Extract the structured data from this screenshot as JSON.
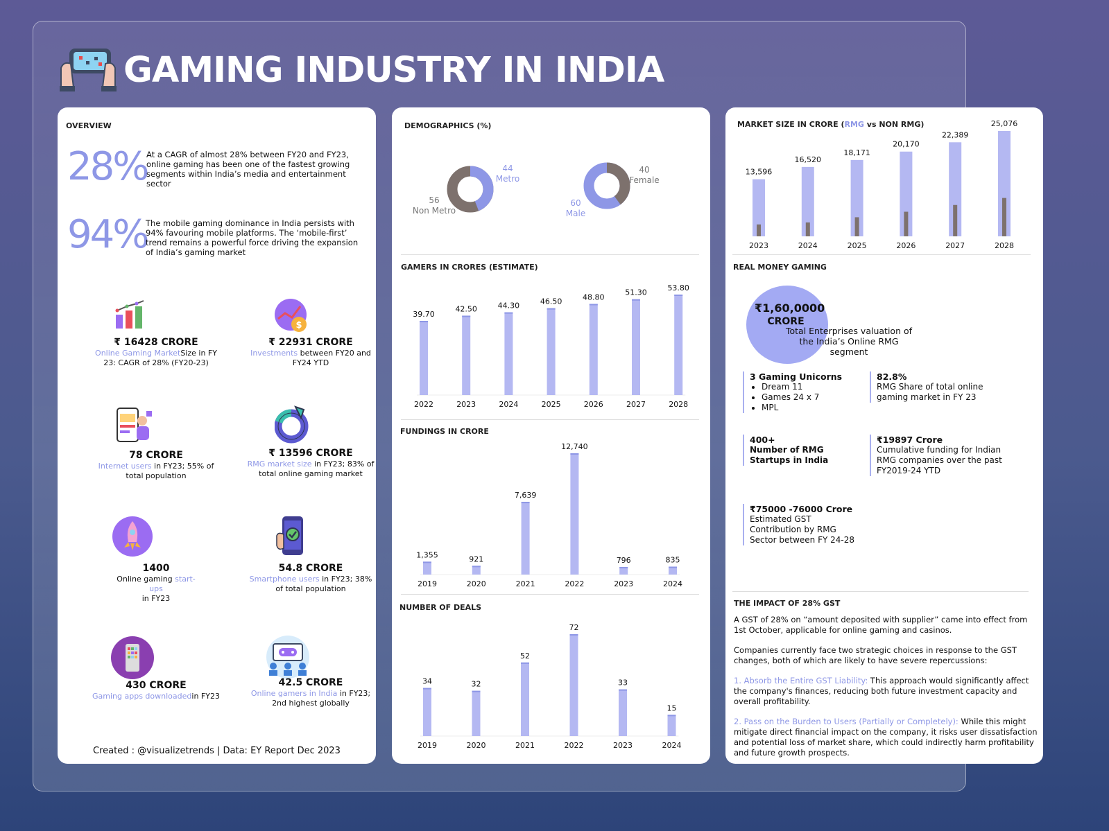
{
  "title": "GAMING INDUSTRY IN INDIA",
  "colors": {
    "accent": "#8e97e6",
    "bar": "#b4b8f2",
    "bar_dark": "#7d716d"
  },
  "overview": {
    "heading": "OVERVIEW",
    "p1": {
      "big": "28%",
      "text": "At a CAGR of almost 28% between FY20 and FY23, online gaming has been one of the fastest growing segments within India’s media and entertainment sector"
    },
    "p2": {
      "big": "94%",
      "text": "The mobile gaming dominance in India persists with 94% favouring mobile platforms. The ‘mobile-first’ trend remains a powerful force driving the expansion of India’s gaming market"
    },
    "stats": [
      {
        "value": "₹ 16428 CRORE",
        "hl": "Online Gaming Market",
        "rest": "Size in FY 23: CAGR of 28% (FY20-23)",
        "icon": "bar-chart-icon"
      },
      {
        "value": "₹ 22931 CRORE",
        "hl": "Investments",
        "rest": " between FY20 and FY24 YTD",
        "icon": "investment-icon"
      },
      {
        "value": "78 CRORE",
        "hl": "Internet users",
        "rest": " in FY23; 55% of total population",
        "icon": "internet-user-icon"
      },
      {
        "value": "₹ 13596 CRORE",
        "hl": "RMG market size",
        "rest": " in FY23; 83% of total online gaming market",
        "icon": "donut-icon"
      },
      {
        "value": "1400",
        "pre": "Online gaming ",
        "hl": "start-ups",
        "rest": "in FY23",
        "icon": "rocket-icon"
      },
      {
        "value": "54.8 CRORE",
        "hl": "Smartphone users",
        "rest": " in FY23; 38% of total population",
        "icon": "smartphone-icon"
      },
      {
        "value": "430 CRORE",
        "hl": "Gaming apps downloaded",
        "rest": "in FY23",
        "icon": "apps-icon"
      },
      {
        "value": "42.5 CRORE",
        "hl": "Online gamers in India",
        "rest": " in FY23; 2nd highest globally",
        "icon": "gamers-icon"
      }
    ],
    "credit": "Created : @visualizetrends | Data: EY Report Dec 2023"
  },
  "chart_data": [
    {
      "type": "pie",
      "title": "DEMOGRAPHICS (%)",
      "categories": [
        "Metro",
        "Non Metro"
      ],
      "values": [
        44,
        56
      ]
    },
    {
      "type": "pie",
      "categories": [
        "Female",
        "Male"
      ],
      "values": [
        40,
        60
      ]
    },
    {
      "type": "bar",
      "title": "GAMERS IN CRORES (ESTIMATE)",
      "categories": [
        "2022",
        "2023",
        "2024",
        "2025",
        "2026",
        "2027",
        "2028"
      ],
      "values": [
        39.7,
        42.5,
        44.3,
        46.5,
        48.8,
        51.3,
        53.8
      ],
      "labels": [
        "39.70",
        "42.50",
        "44.30",
        "46.50",
        "48.80",
        "51.30",
        "53.80"
      ]
    },
    {
      "type": "bar",
      "title": "FUNDINGS IN CRORE",
      "categories": [
        "2019",
        "2020",
        "2021",
        "2022",
        "2023",
        "2024"
      ],
      "values": [
        1355,
        921,
        7639,
        12740,
        796,
        835
      ],
      "labels": [
        "1,355",
        "921",
        "7,639",
        "12,740",
        "796",
        "835"
      ]
    },
    {
      "type": "bar",
      "title": "NUMBER OF DEALS",
      "categories": [
        "2019",
        "2020",
        "2021",
        "2022",
        "2023",
        "2024"
      ],
      "values": [
        34,
        32,
        52,
        72,
        33,
        15
      ],
      "labels": [
        "34",
        "32",
        "52",
        "72",
        "33",
        "15"
      ]
    },
    {
      "type": "bar",
      "title_parts": [
        "MARKET SIZE IN CRORE (",
        "RMG",
        " vs NON RMG)"
      ],
      "categories": [
        "2023",
        "2024",
        "2025",
        "2026",
        "2027",
        "2028"
      ],
      "series": [
        {
          "name": "RMG",
          "values": [
            13596,
            16520,
            18171,
            20170,
            22389,
            25076
          ]
        },
        {
          "name": "NON RMG",
          "values": [
            2832,
            3305,
            4545,
            5856,
            7465,
            9138
          ]
        }
      ],
      "labels": [
        "13,596",
        "16,520",
        "18,171",
        "20,170",
        "22,389",
        "25,076"
      ]
    }
  ],
  "rmg": {
    "heading": "REAL MONEY GAMING",
    "circle_value": "₹1,60,0000",
    "circle_unit": "CRORE",
    "circle_text": "Total Enterprises valuation of the India’s Online RMG segment",
    "unicorns_title": "3 Gaming Unicorns",
    "unicorns": [
      "Dream 11",
      "Games 24 x 7",
      "MPL"
    ],
    "share_value": "82.8%",
    "share_text": "RMG Share of total online gaming market in FY 23",
    "startups_value": "400+",
    "startups_text": "Number of RMG Startups in India",
    "funding_value": "₹19897 Crore",
    "funding_text": "Cumulative funding for Indian RMG companies over the past FY2019-24 YTD",
    "gst_value": "₹75000 -76000 Crore",
    "gst_text": "Estimated GST Contribution by RMG Sector between FY 24-28"
  },
  "impact": {
    "heading": "THE IMPACT OF 28% GST",
    "p1": "A GST of 28% on “amount deposited with supplier” came into effect from 1st October, applicable for online gaming and casinos.",
    "p2": "Companies currently face two strategic choices in response to the GST changes, both of which are likely to have severe repercussions:",
    "o1_title": "1. Absorb the Entire GST Liability:",
    "o1_text": " This approach would significantly affect the company's finances, reducing both future investment capacity and overall profitability.",
    "o2_title": "2. Pass on the Burden to Users (Partially or Completely):",
    "o2_text": " While this might mitigate direct financial impact on the company, it risks user dissatisfaction and potential loss of market share, which could indirectly harm profitability and future growth prospects."
  }
}
